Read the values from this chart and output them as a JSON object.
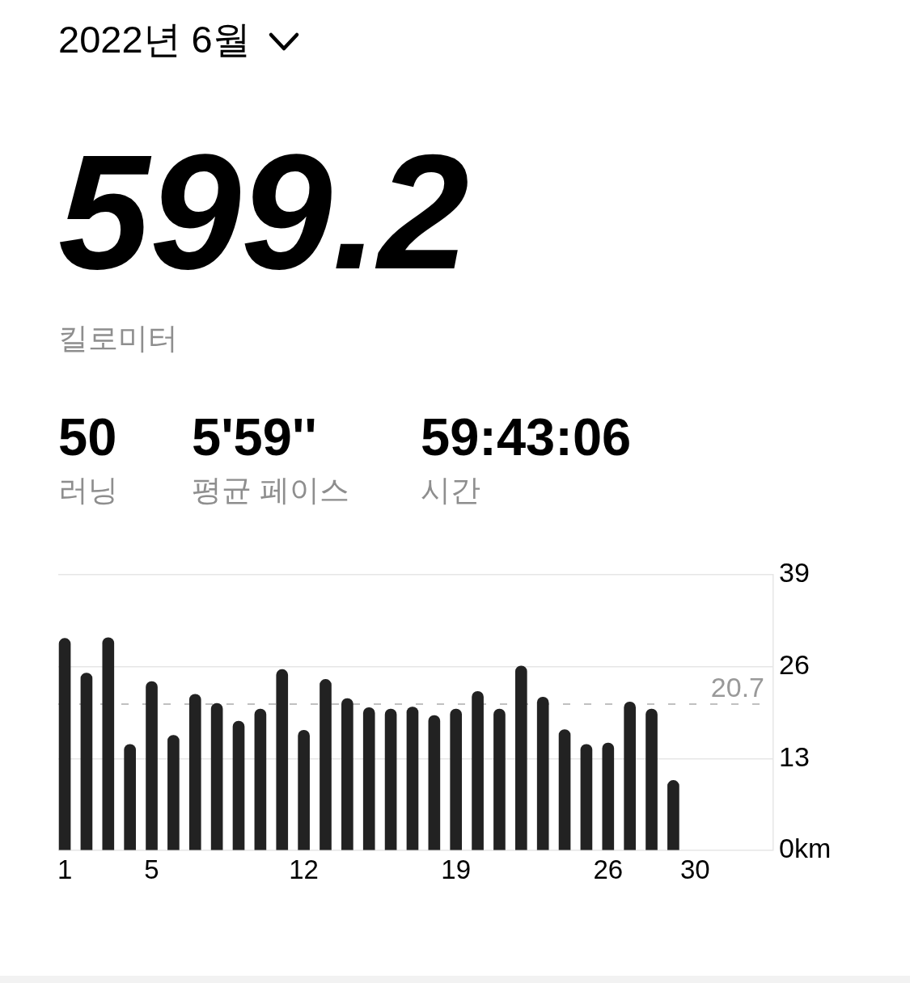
{
  "chart_data": {
    "type": "bar",
    "title": "2022년 6월",
    "annotations": [
      "599.2",
      "킬로미터",
      "50",
      "러닝",
      "5'59''",
      "평균 페이스",
      "59:43:06",
      "시간"
    ],
    "x": [
      1,
      2,
      3,
      4,
      5,
      6,
      7,
      8,
      9,
      10,
      11,
      12,
      13,
      14,
      15,
      16,
      17,
      18,
      19,
      20,
      21,
      22,
      23,
      24,
      25,
      26,
      27,
      28,
      29
    ],
    "values": [
      30,
      25.1,
      30.1,
      15,
      23.9,
      16.3,
      22.1,
      20.8,
      18.3,
      20,
      25.6,
      17,
      24.2,
      21.5,
      20.2,
      20,
      20.3,
      19.1,
      20,
      22.5,
      20,
      26.1,
      21.7,
      17.1,
      15,
      15.2,
      21,
      20,
      9.9
    ],
    "color": "#222222",
    "xlim": [
      0.7,
      33.6
    ],
    "xticks": [
      1,
      5,
      12,
      19,
      26,
      30
    ],
    "ylim": [
      0,
      39
    ],
    "yticks": [
      {
        "value": 0,
        "label": "0km"
      },
      13,
      26,
      39
    ],
    "ref_lines": [
      {
        "axis": "y",
        "value": 20.7,
        "label": "20.7",
        "color": "#c0c0c0",
        "line_style": "dashed"
      }
    ],
    "grid": "y"
  }
}
